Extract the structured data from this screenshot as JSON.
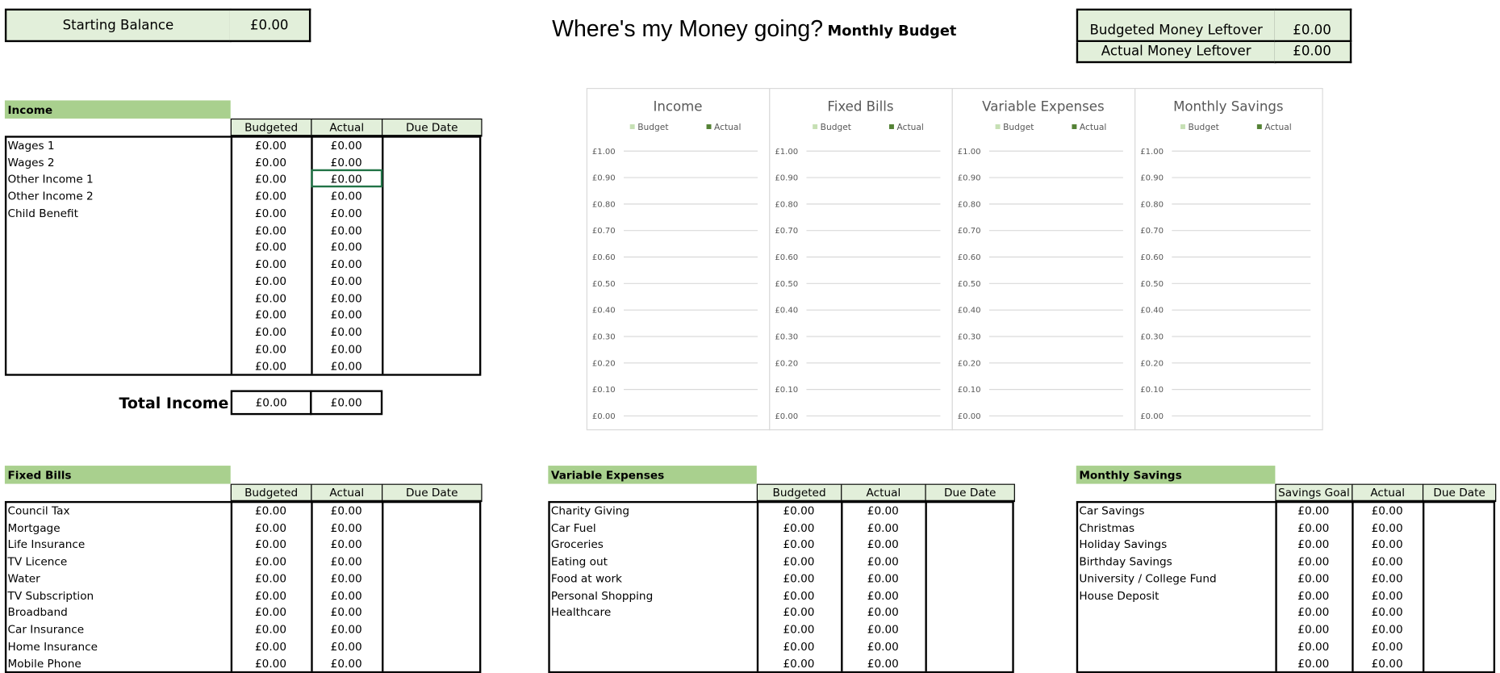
{
  "header": {
    "starting_balance_label": "Starting Balance",
    "starting_balance": "£0.00",
    "title": "Where's my Money going?",
    "subtitle": "Monthly Budget",
    "leftover": [
      [
        "Budgeted Money Leftover",
        "£0.00"
      ],
      [
        "Actual Money Leftover",
        "£0.00"
      ]
    ]
  },
  "charts": [
    {
      "title": "Income",
      "series": [
        {
          "name": "Budget",
          "color": "#c6e0b4"
        },
        {
          "name": "Actual",
          "color": "#548235"
        }
      ],
      "ylim": [
        0,
        1
      ],
      "yticks": [
        {
          "value": 0,
          "label": "£0.00"
        },
        {
          "value": 0.1,
          "label": "£0.10"
        },
        {
          "value": 0.2,
          "label": "£0.20"
        },
        {
          "value": 0.3,
          "label": "£0.30"
        },
        {
          "value": 0.4,
          "label": "£0.40"
        },
        {
          "value": 0.5,
          "label": "£0.50"
        },
        {
          "value": 0.6,
          "label": "£0.60"
        },
        {
          "value": 0.7,
          "label": "£0.70"
        },
        {
          "value": 0.8,
          "label": "£0.80"
        },
        {
          "value": 0.9,
          "label": "£0.90"
        },
        {
          "value": 1,
          "label": "£1.00"
        }
      ],
      "grid": true
    },
    {
      "title": "Fixed Bills",
      "series": [
        {
          "name": "Budget",
          "color": "#c6e0b4"
        },
        {
          "name": "Actual",
          "color": "#548235"
        }
      ],
      "ylim": [
        0,
        1
      ],
      "yticks": [
        {
          "value": 0,
          "label": "£0.00"
        },
        {
          "value": 0.1,
          "label": "£0.10"
        },
        {
          "value": 0.2,
          "label": "£0.20"
        },
        {
          "value": 0.3,
          "label": "£0.30"
        },
        {
          "value": 0.4,
          "label": "£0.40"
        },
        {
          "value": 0.5,
          "label": "£0.50"
        },
        {
          "value": 0.6,
          "label": "£0.60"
        },
        {
          "value": 0.7,
          "label": "£0.70"
        },
        {
          "value": 0.8,
          "label": "£0.80"
        },
        {
          "value": 0.9,
          "label": "£0.90"
        },
        {
          "value": 1,
          "label": "£1.00"
        }
      ],
      "grid": true
    },
    {
      "title": "Variable Expenses",
      "series": [
        {
          "name": "Budget",
          "color": "#c6e0b4"
        },
        {
          "name": "Actual",
          "color": "#548235"
        }
      ],
      "ylim": [
        0,
        1
      ],
      "yticks": [
        {
          "value": 0,
          "label": "£0.00"
        },
        {
          "value": 0.1,
          "label": "£0.10"
        },
        {
          "value": 0.2,
          "label": "£0.20"
        },
        {
          "value": 0.3,
          "label": "£0.30"
        },
        {
          "value": 0.4,
          "label": "£0.40"
        },
        {
          "value": 0.5,
          "label": "£0.50"
        },
        {
          "value": 0.6,
          "label": "£0.60"
        },
        {
          "value": 0.7,
          "label": "£0.70"
        },
        {
          "value": 0.8,
          "label": "£0.80"
        },
        {
          "value": 0.9,
          "label": "£0.90"
        },
        {
          "value": 1,
          "label": "£1.00"
        }
      ],
      "grid": true
    },
    {
      "title": "Monthly Savings",
      "series": [
        {
          "name": "Budget",
          "color": "#c6e0b4"
        },
        {
          "name": "Actual",
          "color": "#548235"
        }
      ],
      "ylim": [
        0,
        1
      ],
      "yticks": [
        {
          "value": 0,
          "label": "£0.00"
        },
        {
          "value": 0.1,
          "label": "£0.10"
        },
        {
          "value": 0.2,
          "label": "£0.20"
        },
        {
          "value": 0.3,
          "label": "£0.30"
        },
        {
          "value": 0.4,
          "label": "£0.40"
        },
        {
          "value": 0.5,
          "label": "£0.50"
        },
        {
          "value": 0.6,
          "label": "£0.60"
        },
        {
          "value": 0.7,
          "label": "£0.70"
        },
        {
          "value": 0.8,
          "label": "£0.80"
        },
        {
          "value": 0.9,
          "label": "£0.90"
        },
        {
          "value": 1,
          "label": "£1.00"
        }
      ],
      "grid": true
    }
  ],
  "tables": [
    {
      "title": "Income",
      "columns": [
        "Budgeted",
        "Actual",
        "Due Date"
      ],
      "rows": [
        [
          "Wages 1",
          "£0.00",
          "£0.00"
        ],
        [
          "Wages 2",
          "£0.00",
          "£0.00"
        ],
        [
          "Other Income 1",
          "£0.00",
          "£0.00"
        ],
        [
          "Other Income 2",
          "£0.00",
          "£0.00"
        ],
        [
          "Child Benefit",
          "£0.00",
          "£0.00"
        ],
        [
          null,
          "£0.00",
          "£0.00"
        ],
        [
          null,
          "£0.00",
          "£0.00"
        ],
        [
          null,
          "£0.00",
          "£0.00"
        ],
        [
          null,
          "£0.00",
          "£0.00"
        ],
        [
          null,
          "£0.00",
          "£0.00"
        ],
        [
          null,
          "£0.00",
          "£0.00"
        ],
        [
          null,
          "£0.00",
          "£0.00"
        ],
        [
          null,
          "£0.00",
          "£0.00"
        ],
        [
          null,
          "£0.00",
          "£0.00"
        ]
      ]
    },
    {
      "title": "Fixed Bills",
      "columns": [
        "Budgeted",
        "Actual",
        "Due Date"
      ],
      "rows": [
        [
          "Council Tax",
          "£0.00",
          "£0.00"
        ],
        [
          "Mortgage",
          "£0.00",
          "£0.00"
        ],
        [
          "Life Insurance",
          "£0.00",
          "£0.00"
        ],
        [
          "TV Licence",
          "£0.00",
          "£0.00"
        ],
        [
          "Water",
          "£0.00",
          "£0.00"
        ],
        [
          "TV Subscription",
          "£0.00",
          "£0.00"
        ],
        [
          "Broadband",
          "£0.00",
          "£0.00"
        ],
        [
          "Car Insurance",
          "£0.00",
          "£0.00"
        ],
        [
          "Home Insurance",
          "£0.00",
          "£0.00"
        ],
        [
          "Mobile Phone",
          "£0.00",
          "£0.00"
        ]
      ]
    },
    {
      "title": "Variable Expenses",
      "columns": [
        "Budgeted",
        "Actual",
        "Due Date"
      ],
      "rows": [
        [
          "Charity Giving",
          "£0.00",
          "£0.00"
        ],
        [
          "Car Fuel",
          "£0.00",
          "£0.00"
        ],
        [
          "Groceries",
          "£0.00",
          "£0.00"
        ],
        [
          "Eating out",
          "£0.00",
          "£0.00"
        ],
        [
          "Food at work",
          "£0.00",
          "£0.00"
        ],
        [
          "Personal Shopping",
          "£0.00",
          "£0.00"
        ],
        [
          "Healthcare",
          "£0.00",
          "£0.00"
        ],
        [
          null,
          "£0.00",
          "£0.00"
        ],
        [
          null,
          "£0.00",
          "£0.00"
        ],
        [
          null,
          "£0.00",
          "£0.00"
        ]
      ]
    },
    {
      "title": "Monthly Savings",
      "columns": [
        "Savings Goal",
        "Actual",
        "Due Date"
      ],
      "rows": [
        [
          "Car Savings",
          "£0.00",
          "£0.00"
        ],
        [
          "Christmas",
          "£0.00",
          "£0.00"
        ],
        [
          "Holiday Savings",
          "£0.00",
          "£0.00"
        ],
        [
          "Birthday Savings",
          "£0.00",
          "£0.00"
        ],
        [
          "University / College Fund",
          "£0.00",
          "£0.00"
        ],
        [
          "House Deposit",
          "£0.00",
          "£0.00"
        ],
        [
          null,
          "£0.00",
          "£0.00"
        ],
        [
          null,
          "£0.00",
          "£0.00"
        ],
        [
          null,
          "£0.00",
          "£0.00"
        ],
        [
          null,
          "£0.00",
          "£0.00"
        ]
      ]
    }
  ],
  "total_income": {
    "label": "Total Income",
    "values": [
      "£0.00",
      "£0.00"
    ]
  }
}
